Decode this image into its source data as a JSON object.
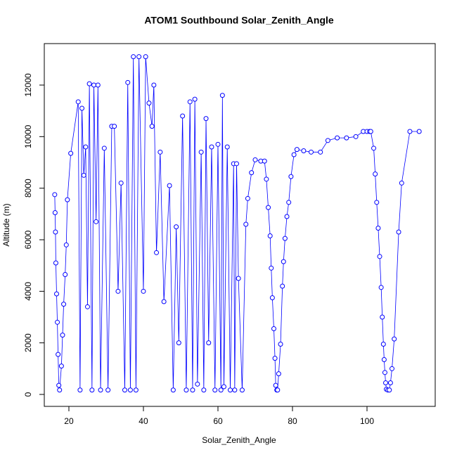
{
  "chart_data": {
    "type": "line",
    "title": "ATOM1 Southbound Solar_Zenith_Angle",
    "x_label": "Solar_Zenith_Angle",
    "y_label": "Altitude (m)",
    "color": "#0000ff",
    "marker": "open-circle",
    "grid": false,
    "xlim": [
      13.4,
      118.3
    ],
    "ylim": [
      -464,
      13609
    ],
    "xticks": [
      20,
      40,
      60,
      80,
      100
    ],
    "yticks": [
      0,
      2000,
      4000,
      6000,
      8000,
      10000,
      12000
    ],
    "x": [
      16.2,
      16.3,
      16.4,
      16.5,
      16.7,
      16.9,
      17.1,
      17.3,
      17.5,
      18,
      18.3,
      18.6,
      19,
      19.3,
      19.6,
      20.5,
      22.5,
      23,
      23.5,
      24,
      24.5,
      25,
      25.5,
      26.2,
      26.7,
      27.3,
      27.8,
      28.5,
      29.5,
      30.5,
      31.5,
      32.2,
      33.2,
      34,
      35,
      35.8,
      36.5,
      37.3,
      38,
      38.8,
      40,
      40.6,
      41.5,
      42.3,
      42.8,
      43.5,
      44.5,
      45.5,
      47,
      48,
      48.8,
      49.5,
      50.5,
      51.5,
      52.5,
      53.2,
      53.8,
      54.5,
      55.5,
      56.2,
      56.8,
      57.5,
      58.3,
      59.2,
      60,
      60.8,
      61.2,
      61.6,
      62.5,
      63.3,
      64.2,
      64.5,
      65,
      65.5,
      66.5,
      67.5,
      68,
      69,
      70,
      71.5,
      72.5,
      73,
      73.5,
      74,
      74.3,
      74.6,
      75,
      75.3,
      75.5,
      75.8,
      76,
      76.3,
      76.8,
      77.3,
      77.6,
      78,
      78.5,
      79,
      79.6,
      80.4,
      81.2,
      83,
      85,
      87.5,
      89.5,
      92,
      94.5,
      97,
      99,
      100,
      100.7,
      101,
      101.8,
      102.2,
      102.6,
      103,
      103.4,
      103.8,
      104.1,
      104.4,
      104.6,
      104.8,
      105,
      105.2,
      105.6,
      106,
      106.3,
      106.7,
      107.3,
      108.5,
      109.3,
      111.5,
      114
    ],
    "values": [
      7750,
      7050,
      6300,
      5100,
      3900,
      2800,
      1550,
      350,
      170,
      1100,
      2300,
      3500,
      4650,
      5800,
      7550,
      9350,
      11350,
      170,
      11100,
      8500,
      9600,
      3400,
      12050,
      170,
      12000,
      6700,
      12000,
      170,
      9550,
      170,
      10400,
      10400,
      4000,
      8200,
      170,
      12100,
      170,
      13100,
      170,
      13100,
      4000,
      13100,
      11300,
      10400,
      12000,
      5500,
      9400,
      3600,
      8100,
      170,
      6500,
      2000,
      10800,
      170,
      11350,
      170,
      11450,
      400,
      9400,
      170,
      10700,
      2000,
      9600,
      170,
      9700,
      170,
      11600,
      300,
      9600,
      170,
      8950,
      170,
      8950,
      4500,
      170,
      6600,
      7600,
      8600,
      9100,
      9050,
      9050,
      8350,
      7250,
      6150,
      4900,
      3750,
      2550,
      1400,
      350,
      170,
      170,
      800,
      1950,
      4200,
      5150,
      6050,
      6900,
      7450,
      8450,
      9300,
      9500,
      9450,
      9400,
      9400,
      9850,
      9950,
      9950,
      10000,
      10200,
      10200,
      10200,
      10200,
      9550,
      8550,
      7450,
      6450,
      5350,
      4150,
      3000,
      1950,
      1350,
      850,
      450,
      200,
      170,
      170,
      450,
      1000,
      2150,
      6300,
      8200,
      10200,
      10200
    ]
  }
}
